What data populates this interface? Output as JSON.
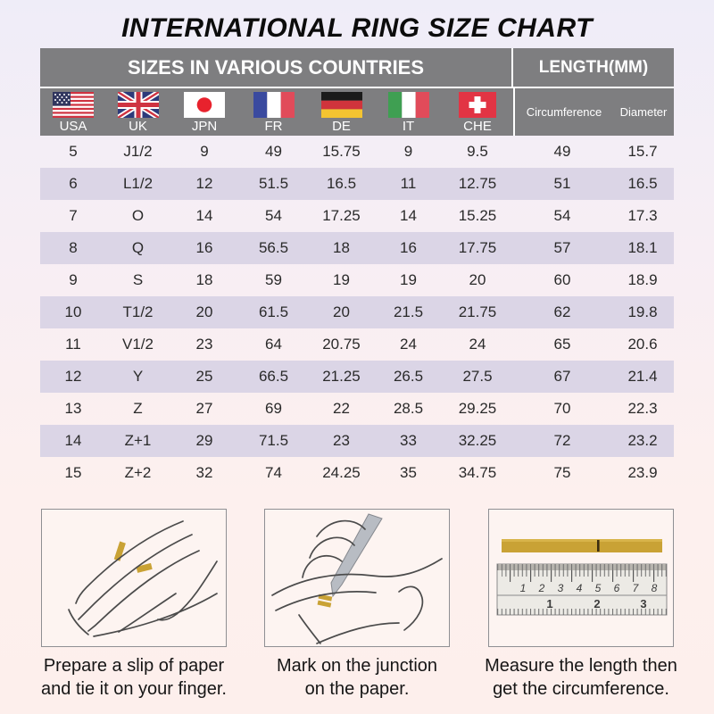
{
  "title": "INTERNATIONAL RING SIZE CHART",
  "table": {
    "group_headers": {
      "countries": "SIZES IN VARIOUS COUNTRIES",
      "length": "LENGTH(MM)"
    },
    "columns": [
      {
        "label": "USA",
        "flag": "usa-flag"
      },
      {
        "label": "UK",
        "flag": "uk-flag"
      },
      {
        "label": "JPN",
        "flag": "japan-flag"
      },
      {
        "label": "FR",
        "flag": "france-flag"
      },
      {
        "label": "DE",
        "flag": "germany-flag"
      },
      {
        "label": "IT",
        "flag": "italy-flag"
      },
      {
        "label": "CHE",
        "flag": "switzerland-flag"
      }
    ],
    "length_columns": {
      "circumference": "Circumference",
      "diameter": "Diameter"
    },
    "rows": [
      [
        "5",
        "J1/2",
        "9",
        "49",
        "15.75",
        "9",
        "9.5",
        "49",
        "15.7"
      ],
      [
        "6",
        "L1/2",
        "12",
        "51.5",
        "16.5",
        "11",
        "12.75",
        "51",
        "16.5"
      ],
      [
        "7",
        "O",
        "14",
        "54",
        "17.25",
        "14",
        "15.25",
        "54",
        "17.3"
      ],
      [
        "8",
        "Q",
        "16",
        "56.5",
        "18",
        "16",
        "17.75",
        "57",
        "18.1"
      ],
      [
        "9",
        "S",
        "18",
        "59",
        "19",
        "19",
        "20",
        "60",
        "18.9"
      ],
      [
        "10",
        "T1/2",
        "20",
        "61.5",
        "20",
        "21.5",
        "21.75",
        "62",
        "19.8"
      ],
      [
        "11",
        "V1/2",
        "23",
        "64",
        "20.75",
        "24",
        "24",
        "65",
        "20.6"
      ],
      [
        "12",
        "Y",
        "25",
        "66.5",
        "21.25",
        "26.5",
        "27.5",
        "67",
        "21.4"
      ],
      [
        "13",
        "Z",
        "27",
        "69",
        "22",
        "28.5",
        "29.25",
        "70",
        "22.3"
      ],
      [
        "14",
        "Z+1",
        "29",
        "71.5",
        "23",
        "33",
        "32.25",
        "72",
        "23.2"
      ],
      [
        "15",
        "Z+2",
        "32",
        "74",
        "24.25",
        "35",
        "34.75",
        "75",
        "23.9"
      ]
    ]
  },
  "instructions": [
    {
      "illustration": "hand-with-paper-strip",
      "lines": [
        "Prepare a slip of paper",
        "and tie it on your finger."
      ]
    },
    {
      "illustration": "hand-marking-paper",
      "lines": [
        "Mark on the junction",
        "on the paper."
      ]
    },
    {
      "illustration": "ruler-measuring-strip",
      "lines": [
        "Measure the length then",
        "get the circumference."
      ]
    }
  ],
  "ruler": {
    "cm": [
      "1",
      "2",
      "3",
      "4",
      "5",
      "6",
      "7",
      "8"
    ],
    "inch": [
      "1",
      "2",
      "3"
    ]
  },
  "colors": {
    "header_gray": "#7e7e80",
    "row_alt_lavender": "#dbd5e6",
    "paper_strip_gold": "#c9a235",
    "background_top": "#efedf8",
    "background_bottom": "#fdefec"
  }
}
